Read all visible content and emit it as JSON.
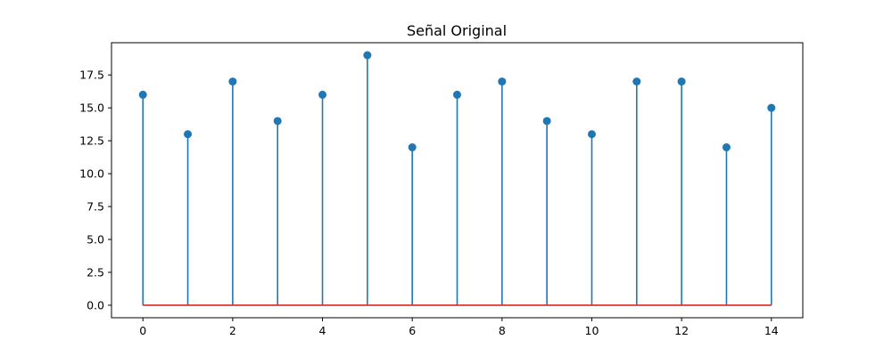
{
  "chart_data": {
    "type": "stem",
    "title": "Señal Original",
    "xlabel": "",
    "ylabel": "",
    "x": [
      0,
      1,
      2,
      3,
      4,
      5,
      6,
      7,
      8,
      9,
      10,
      11,
      12,
      13,
      14
    ],
    "values": [
      16,
      13,
      17,
      14,
      16,
      19,
      12,
      16,
      17,
      14,
      13,
      17,
      17,
      12,
      15
    ],
    "xlim": [
      -0.7,
      14.7
    ],
    "ylim": [
      -0.95,
      19.95
    ],
    "xticks": [
      0,
      2,
      4,
      6,
      8,
      10,
      12,
      14
    ],
    "xtick_labels": [
      "0",
      "2",
      "4",
      "6",
      "8",
      "10",
      "12",
      "14"
    ],
    "yticks": [
      0,
      2.5,
      5,
      7.5,
      10,
      12.5,
      15,
      17.5
    ],
    "ytick_labels": [
      "0.0",
      "2.5",
      "5.0",
      "7.5",
      "10.0",
      "12.5",
      "15.0",
      "17.5"
    ],
    "baseline": 0,
    "grid": false,
    "colors": {
      "stem": "#1f77b4",
      "marker": "#1f77b4",
      "baseline": "#d62728"
    }
  }
}
